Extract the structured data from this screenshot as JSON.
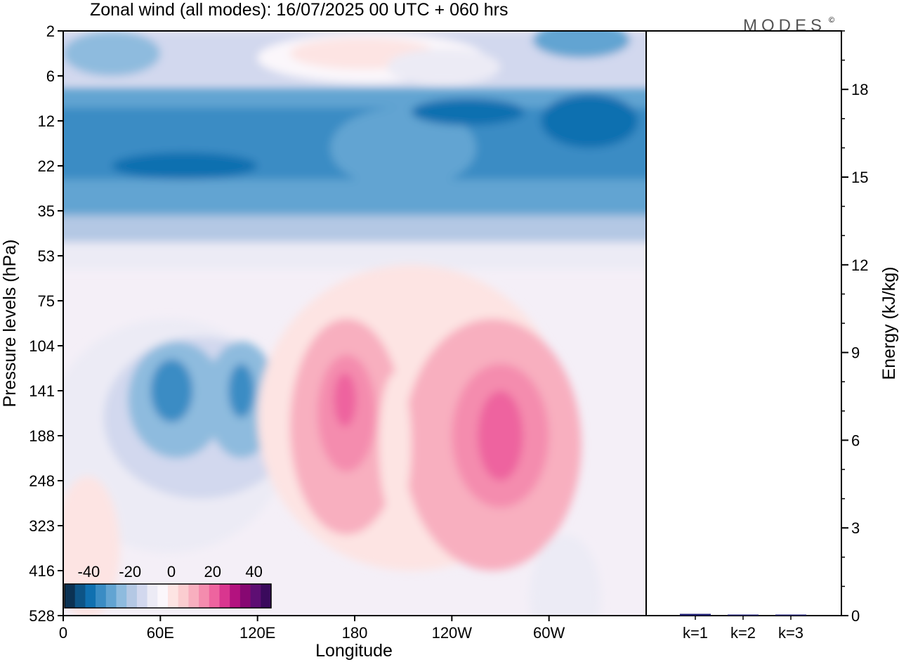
{
  "logo": "MODES",
  "logo_mark": "©",
  "chart_data": [
    {
      "type": "heatmap",
      "title": "Zonal wind (all modes):  16/07/2025  00 UTC  + 060 hrs",
      "xlabel": "Longitude",
      "ylabel": "Pressure levels (hPa)",
      "x_ticks": [
        "0",
        "60E",
        "120E",
        "180",
        "120W",
        "60W"
      ],
      "x_tick_positions_deg": [
        0,
        60,
        120,
        180,
        240,
        300
      ],
      "xlim_deg": [
        0,
        360
      ],
      "y_ticks": [
        "2",
        "6",
        "12",
        "22",
        "35",
        "53",
        "75",
        "104",
        "141",
        "188",
        "248",
        "323",
        "416",
        "528"
      ],
      "colorbar": {
        "tick_labels": [
          "-40",
          "-20",
          "0",
          "20",
          "40"
        ],
        "tick_values": [
          -40,
          -20,
          0,
          20,
          40
        ],
        "range": [
          -50,
          50
        ],
        "colors": [
          "#0b3253",
          "#0d5486",
          "#1070b0",
          "#3a8cc4",
          "#62a4d2",
          "#8ebbde",
          "#b4c8e4",
          "#d2d8ee",
          "#ecebf5",
          "#fbf7fb",
          "#fde4e3",
          "#fbcdd0",
          "#f8afbf",
          "#f48cae",
          "#ee649f",
          "#d9368f",
          "#b3127f",
          "#870872",
          "#5e0e73",
          "#3a0a5c"
        ]
      },
      "wind_features_ms": [
        {
          "region": "upper stratosphere (2-6 hPa)",
          "value": -15
        },
        {
          "region": "easterly jet core (12-22 hPa)",
          "value": -35
        },
        {
          "region": "easterly max near 70E, 141 hPa",
          "value": -38
        },
        {
          "region": "easterly max near 110E, 141 hPa",
          "value": -32
        },
        {
          "region": "westerly max near 165E, 141 hPa",
          "value": 22
        },
        {
          "region": "westerly max near 265E, 150 hPa",
          "value": 22
        },
        {
          "region": "lower troposphere",
          "value": 0
        }
      ]
    },
    {
      "type": "bar",
      "ylabel": "Energy (kJ/kg)",
      "categories": [
        "k=1",
        "k=2",
        "k=3"
      ],
      "values": [
        0.06,
        0.02,
        0.02
      ],
      "ylim": [
        0,
        20
      ],
      "y_ticks": [
        "0",
        "3",
        "6",
        "9",
        "12",
        "15",
        "18"
      ],
      "bar_color": "#1a1a6e"
    }
  ]
}
